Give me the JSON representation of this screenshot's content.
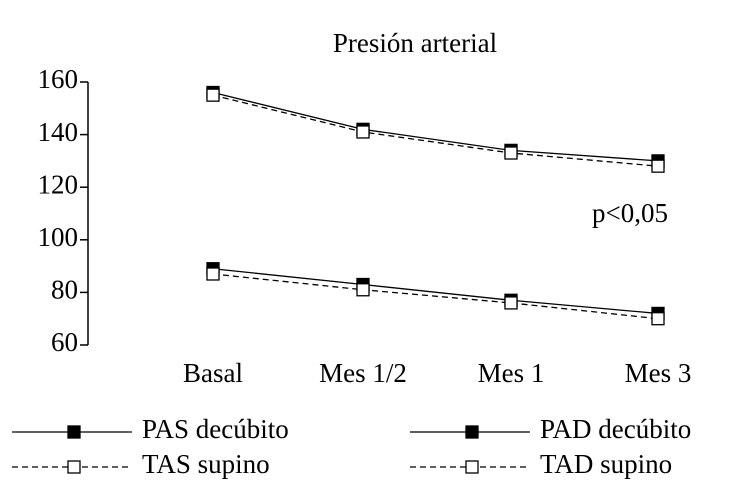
{
  "chart_data": {
    "type": "line",
    "title": "Presión arterial",
    "annotation": "p<0,05",
    "categories": [
      "Basal",
      "Mes 1/2",
      "Mes 1",
      "Mes 3"
    ],
    "series": [
      {
        "name": "PAS decúbito",
        "color": "#000000",
        "line_style": "solid",
        "marker": "filled-square",
        "values": [
          156,
          142,
          134,
          130
        ]
      },
      {
        "name": "TAS supino",
        "color": "#000000",
        "line_style": "dashed",
        "marker": "open-square",
        "values": [
          155,
          141,
          133,
          128
        ]
      },
      {
        "name": "PAD decúbito",
        "color": "#000000",
        "line_style": "solid",
        "marker": "filled-square",
        "values": [
          89,
          83,
          77,
          72
        ]
      },
      {
        "name": "TAD supino",
        "color": "#000000",
        "line_style": "dashed",
        "marker": "open-square",
        "values": [
          87,
          81,
          76,
          70
        ]
      }
    ],
    "ylim": [
      60,
      160
    ],
    "yticks": [
      60,
      80,
      100,
      120,
      140,
      160
    ],
    "grid": false
  }
}
